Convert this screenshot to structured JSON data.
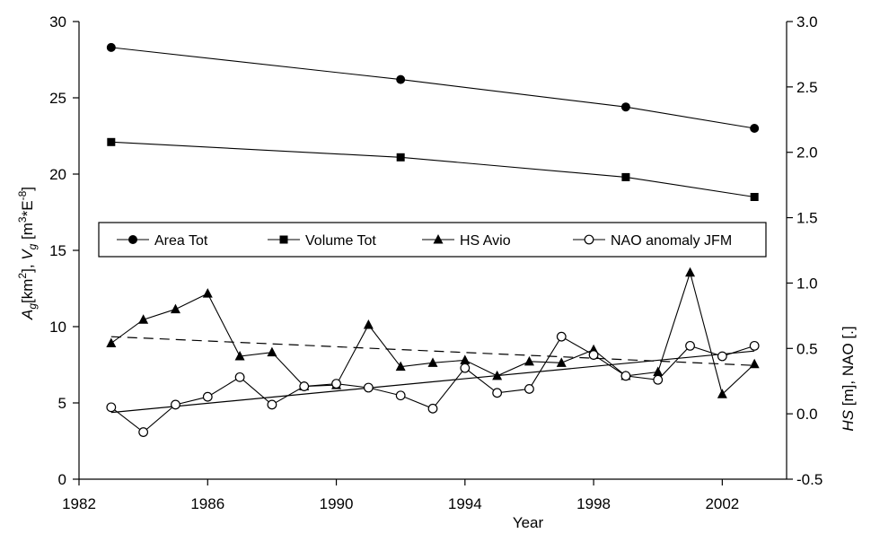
{
  "chart_data": {
    "type": "line",
    "xlabel": "Year",
    "ylabel_left": "A_g[km2], V_g [m3*E-8]",
    "ylabel_left_parts": {
      "a": "A",
      "a_sub": "g",
      "a_unit": "[km",
      "a_sup": "2",
      "a_close": "], ",
      "v": "V",
      "v_sub": "g",
      "v_unit": " [m",
      "v_sup": "3",
      "v_mid": "*E",
      "v_sup2": "-8",
      "v_close": "]"
    },
    "ylabel_right": "HS [m], NAO [.]",
    "ylabel_right_parts": {
      "hs": "HS",
      "rest": " [m], NAO [.]"
    },
    "xlim": [
      1982,
      2004
    ],
    "xticks": [
      1982,
      1986,
      1990,
      1994,
      1998,
      2002
    ],
    "ylim_left": [
      0,
      30
    ],
    "yticks_left": [
      0,
      5,
      10,
      15,
      20,
      25,
      30
    ],
    "ylim_right": [
      -0.5,
      3.0
    ],
    "yticks_right": [
      "-0.5",
      "0.0",
      "0.5",
      "1.0",
      "1.5",
      "2.0",
      "2.5",
      "3.0"
    ],
    "grid": false,
    "legend_position": "middle",
    "series": [
      {
        "name": "Area Tot",
        "axis": "left",
        "marker": "filled-circle",
        "x": [
          1983,
          1992,
          1999,
          2003
        ],
        "y": [
          28.3,
          26.2,
          24.4,
          23.0
        ]
      },
      {
        "name": "Volume Tot",
        "axis": "left",
        "marker": "filled-square",
        "x": [
          1983,
          1992,
          1999,
          2003
        ],
        "y": [
          22.1,
          21.1,
          19.8,
          18.5
        ]
      },
      {
        "name": "HS Avio",
        "axis": "right",
        "marker": "filled-triangle",
        "x": [
          1983,
          1984,
          1985,
          1986,
          1987,
          1988,
          1989,
          1990,
          1991,
          1992,
          1993,
          1994,
          1995,
          1996,
          1997,
          1998,
          1999,
          2000,
          2001,
          2002,
          2003
        ],
        "y": [
          0.54,
          0.72,
          0.8,
          0.92,
          0.44,
          0.47,
          0.21,
          0.22,
          0.68,
          0.36,
          0.39,
          0.41,
          0.29,
          0.4,
          0.39,
          0.49,
          0.29,
          0.32,
          1.08,
          0.15,
          0.38
        ]
      },
      {
        "name": "NAO anomaly JFM",
        "axis": "right",
        "marker": "open-circle",
        "x": [
          1983,
          1984,
          1985,
          1986,
          1987,
          1988,
          1989,
          1990,
          1991,
          1992,
          1993,
          1994,
          1995,
          1996,
          1997,
          1998,
          1999,
          2000,
          2001,
          2002,
          2003
        ],
        "y": [
          0.05,
          -0.14,
          0.07,
          0.13,
          0.28,
          0.07,
          0.21,
          0.23,
          0.2,
          0.14,
          0.04,
          0.35,
          0.16,
          0.19,
          0.59,
          0.45,
          0.29,
          0.26,
          0.52,
          0.44,
          0.52
        ]
      }
    ],
    "trend_lines": [
      {
        "series": "HS Avio",
        "axis": "right",
        "style": "dashed",
        "x": [
          1983,
          2003
        ],
        "y": [
          0.59,
          0.37
        ]
      },
      {
        "series": "NAO anomaly JFM",
        "axis": "right",
        "style": "solid",
        "x": [
          1983,
          2003
        ],
        "y": [
          0.01,
          0.48
        ]
      }
    ]
  }
}
